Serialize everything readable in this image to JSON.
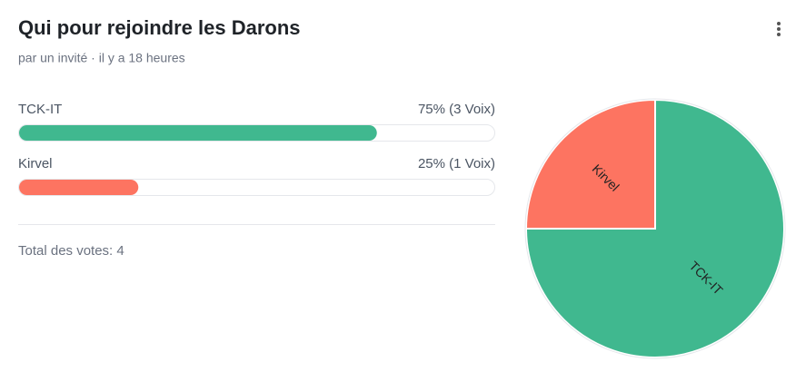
{
  "header": {
    "title": "Qui pour rejoindre les Darons",
    "subtitle": "par un invité · il y a 18 heures"
  },
  "chart_data": {
    "type": "poll",
    "categories": [
      "TCK-IT",
      "Kirvel"
    ],
    "values": [
      75,
      25
    ],
    "value_labels": [
      "75% (3 Voix)",
      "25% (1 Voix)"
    ],
    "colors": [
      "#40b88f",
      "#fd7461"
    ],
    "xlim": [
      0,
      100
    ]
  },
  "footer": {
    "total": "Total des votes: 4"
  }
}
